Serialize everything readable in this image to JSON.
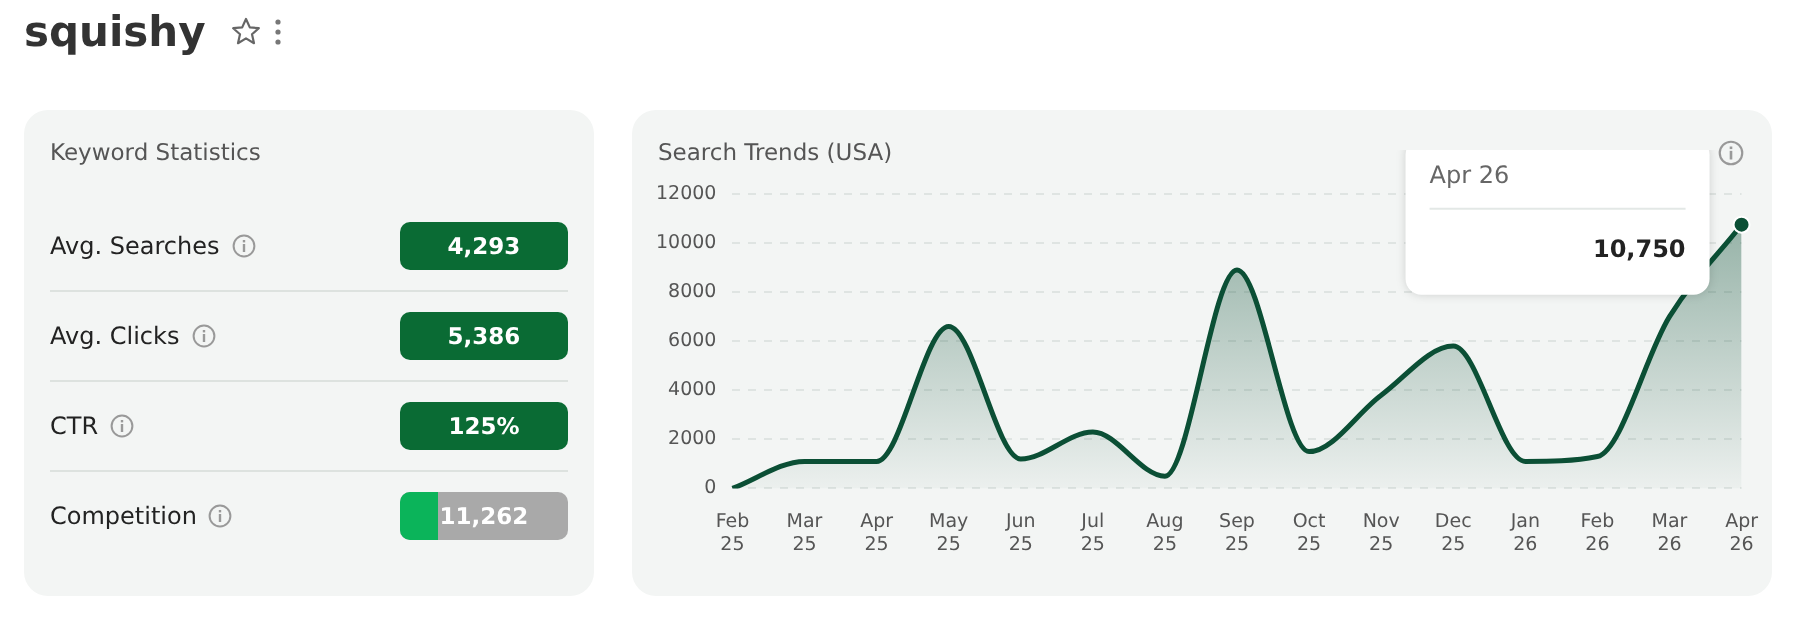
{
  "chart_data": [
    {
      "type": "other",
      "title": "squishy"
    },
    {
      "type": "other",
      "title": "Keyword Statistics",
      "annotations": [
        "Avg. Searches",
        "4,293",
        "Avg. Clicks",
        "5,386",
        "CTR",
        "125%",
        "Competition",
        "11,262"
      ]
    },
    {
      "type": "area",
      "title": "Search Trends (USA)",
      "categories": [
        "Feb 25",
        "Mar 25",
        "Apr 25",
        "May 25",
        "Jun 25",
        "Jul 25",
        "Aug 25",
        "Sep 25",
        "Oct 25",
        "Nov 25",
        "Dec 25",
        "Jan 26",
        "Feb 26",
        "Mar 26",
        "Apr 26"
      ],
      "series": [
        {
          "color": "#0b4f35",
          "values": [
            0,
            1100,
            1100,
            6600,
            1200,
            2300,
            500,
            8900,
            1500,
            3800,
            5800,
            1100,
            1300,
            7000,
            10750
          ]
        }
      ],
      "ylim": [
        0,
        12000
      ],
      "yticks": [
        0,
        2000,
        4000,
        6000,
        8000,
        10000,
        12000
      ],
      "grid": "y",
      "legend": false,
      "marker": "none",
      "line_style": "solid",
      "annotations": [
        "Apr 26",
        "10,750"
      ]
    }
  ]
}
